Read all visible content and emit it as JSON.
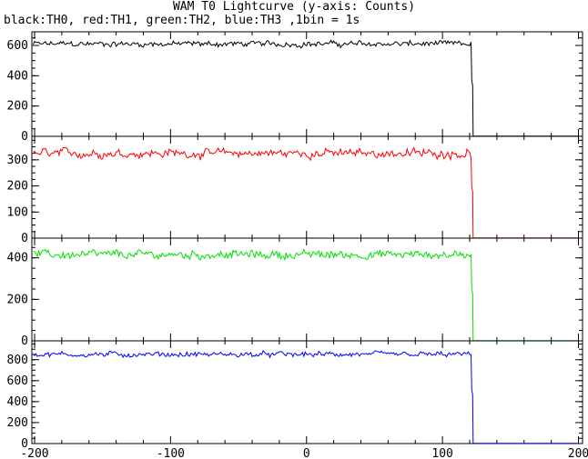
{
  "chart_data": [
    {
      "type": "line",
      "title": "WAM T0 Lightcurve (y-axis: Counts)",
      "subtitle": "black:TH0, red:TH1, green:TH2, blue:TH3 ,1bin = 1s",
      "ylabel": "Counts",
      "color": "#000000",
      "xlim": [
        -202,
        203
      ],
      "ylim": [
        0,
        690
      ],
      "xticks": [
        -200,
        -100,
        0,
        100,
        200
      ],
      "xtick_labels": [
        "-200",
        "-100",
        "0",
        "100",
        "200"
      ],
      "yticks": [
        0,
        200,
        400,
        600
      ],
      "pre_level": 610,
      "pre_noise": 17,
      "drop_x": 121.5,
      "post_level": 2,
      "x_end": 200,
      "shows_x_tick_labels": false
    },
    {
      "type": "line",
      "title": "",
      "ylabel": "",
      "color": "#ff0000",
      "xlim": [
        -202,
        203
      ],
      "ylim": [
        0,
        390
      ],
      "xticks": [
        -200,
        -100,
        0,
        100,
        200
      ],
      "xtick_labels": [
        "-200",
        "-100",
        "0",
        "100",
        "200"
      ],
      "yticks": [
        0,
        100,
        200,
        300
      ],
      "pre_level": 325,
      "pre_noise": 15,
      "drop_x": 121.5,
      "post_level": 1,
      "x_end": 200,
      "shows_x_tick_labels": false
    },
    {
      "type": "line",
      "title": "",
      "ylabel": "",
      "color": "#00e000",
      "xlim": [
        -202,
        203
      ],
      "ylim": [
        0,
        495
      ],
      "xticks": [
        -200,
        -100,
        0,
        100,
        200
      ],
      "xtick_labels": [
        "-200",
        "-100",
        "0",
        "100",
        "200"
      ],
      "yticks": [
        0,
        200,
        400
      ],
      "pre_level": 415,
      "pre_noise": 18,
      "drop_x": 121.5,
      "post_level": 1,
      "x_end": 200,
      "shows_x_tick_labels": false
    },
    {
      "type": "line",
      "title": "",
      "ylabel": "",
      "color": "#0000ff",
      "xlim": [
        -202,
        203
      ],
      "ylim": [
        0,
        980
      ],
      "xticks": [
        -200,
        -100,
        0,
        100,
        200
      ],
      "xtick_labels": [
        "-200",
        "-100",
        "0",
        "100",
        "200"
      ],
      "yticks": [
        0,
        200,
        400,
        600,
        800
      ],
      "pre_level": 850,
      "pre_noise": 22,
      "drop_x": 121.5,
      "post_level": 2,
      "x_end": 200,
      "shows_x_tick_labels": true
    }
  ]
}
